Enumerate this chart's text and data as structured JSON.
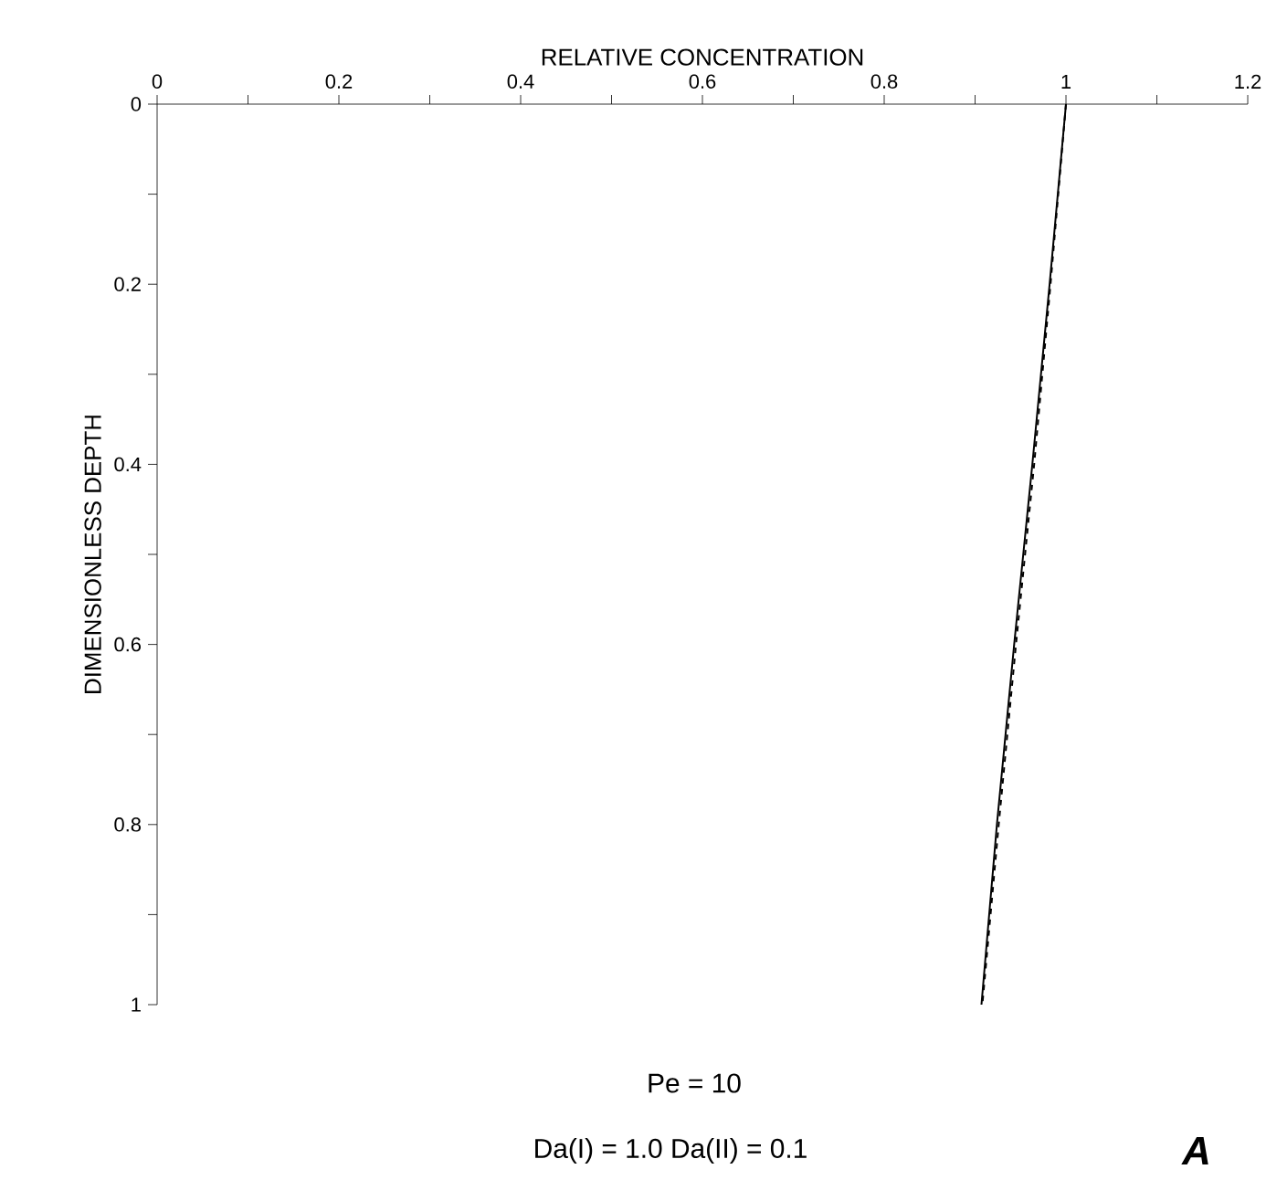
{
  "chart_data": {
    "type": "line",
    "xlabel": "RELATIVE CONCENTRATION",
    "ylabel": "DIMENSIONLESS DEPTH",
    "xlim": [
      0,
      1.2
    ],
    "ylim": [
      1,
      0
    ],
    "xticks": [
      0,
      {
        "value": 0.1,
        "label": null
      },
      0.2,
      {
        "value": 0.3,
        "label": null
      },
      0.4,
      {
        "value": 0.5,
        "label": null
      },
      0.6,
      {
        "value": 0.7,
        "label": null
      },
      0.8,
      {
        "value": 0.9,
        "label": null
      },
      1,
      {
        "value": 1.1,
        "label": null
      },
      1.2
    ],
    "yticks": [
      0,
      {
        "value": 0.1,
        "label": null
      },
      0.2,
      {
        "value": 0.3,
        "label": null
      },
      0.4,
      {
        "value": 0.5,
        "label": null
      },
      0.6,
      {
        "value": 0.7,
        "label": null
      },
      0.8,
      {
        "value": 0.9,
        "label": null
      },
      1
    ],
    "series": [
      {
        "color": "#000000",
        "line_style": "solid",
        "x": [
          1.0,
          0.982,
          0.963,
          0.943,
          0.924,
          0.907
        ],
        "values": [
          0,
          0.2,
          0.4,
          0.6,
          0.8,
          1
        ]
      },
      {
        "color": "#000000",
        "line_style": "dashed",
        "x": [
          1.0,
          0.983,
          0.965,
          0.945,
          0.926,
          0.908
        ],
        "values": [
          0,
          0.2,
          0.4,
          0.6,
          0.8,
          1
        ]
      }
    ],
    "annotations": [
      "Pe = 10",
      "Da(I) = 1.0    Da(II) = 0.1",
      "A"
    ]
  }
}
